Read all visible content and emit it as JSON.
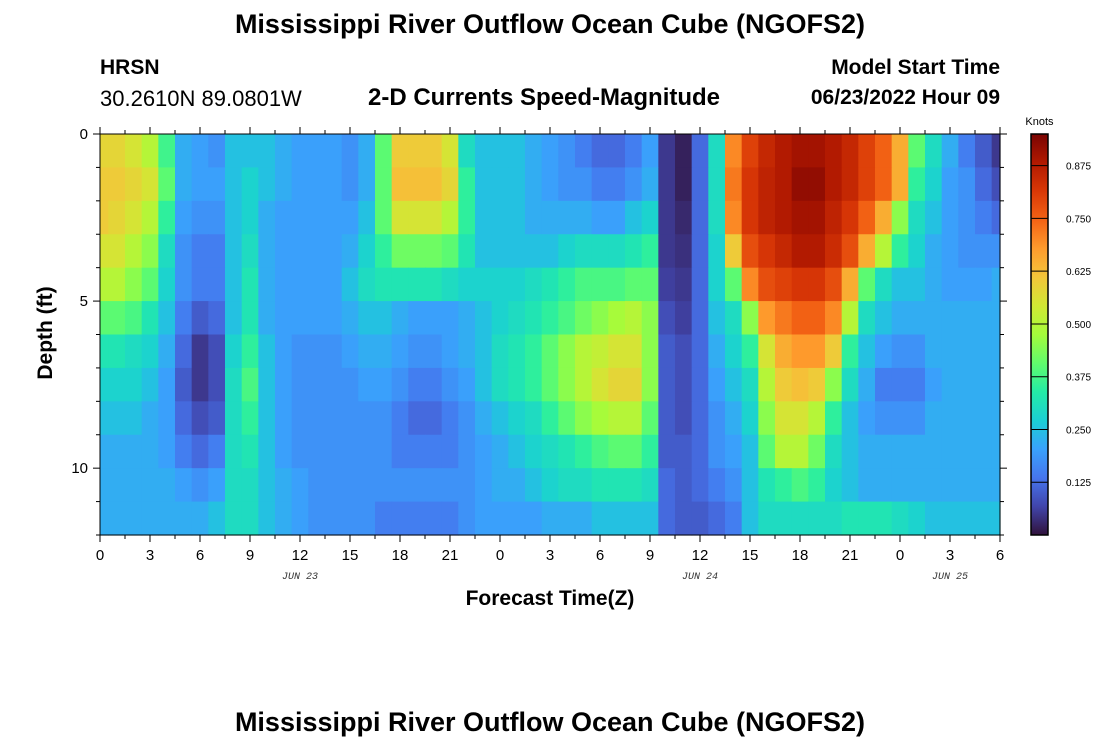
{
  "header": {
    "title": "Mississippi River Outflow Ocean Cube (NGOFS2)",
    "title_repeat": "Mississippi River Outflow Ocean Cube (NGOFS2)",
    "station": "HRSN",
    "coords": "30.2610N  89.0801W",
    "chart_title": "2-D Currents Speed-Magnitude",
    "start_label": "Model Start Time",
    "start_value": "06/23/2022 Hour 09"
  },
  "chart_data": {
    "type": "heatmap",
    "title": "2-D Currents Speed-Magnitude",
    "xlabel": "Forecast Time(Z)",
    "ylabel": "Depth (ft)",
    "x_range_hours": [
      0,
      54
    ],
    "depth_range_ft": [
      0,
      12
    ],
    "x_tick_labels": [
      "0",
      "3",
      "6",
      "9",
      "12",
      "15",
      "18",
      "21",
      "0",
      "3",
      "6",
      "9",
      "12",
      "15",
      "18",
      "21",
      "0",
      "3",
      "6"
    ],
    "y_tick_labels": [
      "0",
      "5",
      "10"
    ],
    "y_tick_values": [
      0,
      5,
      10
    ],
    "date_labels": [
      {
        "hour": 12,
        "text": "JUN 23"
      },
      {
        "hour": 36,
        "text": "JUN 24"
      },
      {
        "hour": 51,
        "text": "JUN 25"
      }
    ],
    "colorbar": {
      "unit": "Knots",
      "min": 0.0,
      "max": 0.95,
      "tick_labels": [
        "0.125",
        "0.250",
        "0.375",
        "0.500",
        "0.625",
        "0.750",
        "0.875"
      ],
      "tick_values": [
        0.125,
        0.25,
        0.375,
        0.5,
        0.625,
        0.75,
        0.875
      ],
      "colors": [
        "#30123b",
        "#4145ab",
        "#4675ed",
        "#39a2fc",
        "#1bcfd4",
        "#24eca6",
        "#61fc6c",
        "#a4fc3b",
        "#d1e834",
        "#f3c63a",
        "#fe9b2d",
        "#f36315",
        "#d93806",
        "#b11901",
        "#7a0402"
      ]
    },
    "depth_levels_ft": [
      0.5,
      1.5,
      2.5,
      3.5,
      4.5,
      5.5,
      6.5,
      7.5,
      8.5,
      9.5,
      10.5,
      11.5
    ],
    "speed_knots": [
      [
        0.58,
        0.58,
        0.55,
        0.5,
        0.37,
        0.22,
        0.2,
        0.18,
        0.25,
        0.25,
        0.25,
        0.22,
        0.2,
        0.2,
        0.2,
        0.18,
        0.22,
        0.4,
        0.6,
        0.6,
        0.6,
        0.55,
        0.3,
        0.25,
        0.25,
        0.25,
        0.22,
        0.2,
        0.18,
        0.15,
        0.12,
        0.12,
        0.15,
        0.2,
        0.05,
        0.02,
        0.12,
        0.3,
        0.7,
        0.8,
        0.85,
        0.88,
        0.9,
        0.9,
        0.88,
        0.85,
        0.8,
        0.75,
        0.65,
        0.4,
        0.3,
        0.22,
        0.15,
        0.1,
        0.05
      ],
      [
        0.6,
        0.6,
        0.58,
        0.55,
        0.4,
        0.22,
        0.2,
        0.2,
        0.25,
        0.28,
        0.25,
        0.22,
        0.2,
        0.2,
        0.2,
        0.18,
        0.22,
        0.4,
        0.62,
        0.62,
        0.62,
        0.58,
        0.35,
        0.25,
        0.25,
        0.25,
        0.22,
        0.2,
        0.18,
        0.18,
        0.15,
        0.15,
        0.18,
        0.22,
        0.05,
        0.02,
        0.12,
        0.3,
        0.72,
        0.82,
        0.86,
        0.88,
        0.92,
        0.92,
        0.88,
        0.85,
        0.8,
        0.75,
        0.65,
        0.35,
        0.28,
        0.2,
        0.18,
        0.12,
        0.08
      ],
      [
        0.6,
        0.58,
        0.55,
        0.5,
        0.35,
        0.2,
        0.18,
        0.18,
        0.25,
        0.28,
        0.22,
        0.2,
        0.2,
        0.2,
        0.2,
        0.2,
        0.25,
        0.4,
        0.55,
        0.55,
        0.55,
        0.5,
        0.35,
        0.25,
        0.25,
        0.25,
        0.22,
        0.22,
        0.22,
        0.22,
        0.2,
        0.2,
        0.25,
        0.28,
        0.05,
        0.03,
        0.12,
        0.3,
        0.7,
        0.82,
        0.86,
        0.88,
        0.9,
        0.9,
        0.86,
        0.82,
        0.75,
        0.65,
        0.45,
        0.3,
        0.25,
        0.2,
        0.18,
        0.15,
        0.12
      ],
      [
        0.55,
        0.55,
        0.5,
        0.45,
        0.3,
        0.18,
        0.15,
        0.15,
        0.25,
        0.3,
        0.22,
        0.2,
        0.2,
        0.2,
        0.2,
        0.22,
        0.28,
        0.35,
        0.42,
        0.42,
        0.42,
        0.4,
        0.32,
        0.25,
        0.25,
        0.25,
        0.25,
        0.25,
        0.28,
        0.3,
        0.3,
        0.3,
        0.32,
        0.35,
        0.05,
        0.04,
        0.12,
        0.28,
        0.6,
        0.78,
        0.82,
        0.85,
        0.88,
        0.88,
        0.84,
        0.78,
        0.65,
        0.5,
        0.35,
        0.28,
        0.22,
        0.2,
        0.18,
        0.18,
        0.18
      ],
      [
        0.5,
        0.5,
        0.45,
        0.4,
        0.28,
        0.18,
        0.15,
        0.15,
        0.25,
        0.32,
        0.22,
        0.2,
        0.2,
        0.2,
        0.2,
        0.25,
        0.3,
        0.32,
        0.32,
        0.32,
        0.32,
        0.3,
        0.28,
        0.28,
        0.28,
        0.28,
        0.3,
        0.32,
        0.35,
        0.38,
        0.38,
        0.38,
        0.4,
        0.4,
        0.06,
        0.05,
        0.12,
        0.28,
        0.4,
        0.7,
        0.78,
        0.8,
        0.82,
        0.82,
        0.78,
        0.65,
        0.4,
        0.3,
        0.25,
        0.25,
        0.22,
        0.2,
        0.2,
        0.2,
        0.22
      ],
      [
        0.4,
        0.4,
        0.38,
        0.32,
        0.25,
        0.15,
        0.1,
        0.12,
        0.25,
        0.32,
        0.22,
        0.2,
        0.2,
        0.2,
        0.2,
        0.22,
        0.25,
        0.25,
        0.22,
        0.2,
        0.2,
        0.2,
        0.22,
        0.25,
        0.28,
        0.3,
        0.32,
        0.35,
        0.38,
        0.42,
        0.45,
        0.48,
        0.5,
        0.45,
        0.08,
        0.06,
        0.12,
        0.25,
        0.3,
        0.45,
        0.68,
        0.72,
        0.75,
        0.75,
        0.7,
        0.5,
        0.3,
        0.25,
        0.22,
        0.22,
        0.22,
        0.22,
        0.22,
        0.22,
        0.22
      ],
      [
        0.32,
        0.32,
        0.3,
        0.28,
        0.22,
        0.12,
        0.05,
        0.08,
        0.28,
        0.35,
        0.25,
        0.2,
        0.18,
        0.18,
        0.18,
        0.2,
        0.22,
        0.22,
        0.2,
        0.18,
        0.18,
        0.2,
        0.22,
        0.25,
        0.3,
        0.32,
        0.35,
        0.4,
        0.45,
        0.5,
        0.52,
        0.55,
        0.55,
        0.45,
        0.1,
        0.08,
        0.12,
        0.22,
        0.28,
        0.35,
        0.55,
        0.65,
        0.68,
        0.68,
        0.6,
        0.35,
        0.25,
        0.2,
        0.18,
        0.18,
        0.22,
        0.22,
        0.22,
        0.22,
        0.22
      ],
      [
        0.28,
        0.28,
        0.28,
        0.25,
        0.2,
        0.1,
        0.05,
        0.08,
        0.3,
        0.38,
        0.25,
        0.2,
        0.18,
        0.18,
        0.18,
        0.18,
        0.2,
        0.2,
        0.18,
        0.15,
        0.15,
        0.18,
        0.2,
        0.25,
        0.3,
        0.32,
        0.35,
        0.4,
        0.45,
        0.5,
        0.55,
        0.58,
        0.58,
        0.45,
        0.1,
        0.08,
        0.12,
        0.2,
        0.25,
        0.3,
        0.5,
        0.6,
        0.62,
        0.6,
        0.45,
        0.3,
        0.22,
        0.15,
        0.15,
        0.15,
        0.2,
        0.22,
        0.22,
        0.22,
        0.22
      ],
      [
        0.25,
        0.25,
        0.25,
        0.22,
        0.2,
        0.12,
        0.08,
        0.1,
        0.3,
        0.35,
        0.25,
        0.2,
        0.18,
        0.18,
        0.18,
        0.18,
        0.18,
        0.18,
        0.15,
        0.12,
        0.12,
        0.15,
        0.18,
        0.22,
        0.25,
        0.28,
        0.3,
        0.35,
        0.4,
        0.45,
        0.48,
        0.5,
        0.5,
        0.4,
        0.1,
        0.08,
        0.12,
        0.18,
        0.22,
        0.28,
        0.45,
        0.55,
        0.55,
        0.5,
        0.35,
        0.25,
        0.2,
        0.18,
        0.18,
        0.18,
        0.22,
        0.22,
        0.22,
        0.22,
        0.22
      ],
      [
        0.22,
        0.22,
        0.22,
        0.22,
        0.2,
        0.15,
        0.12,
        0.15,
        0.3,
        0.32,
        0.25,
        0.2,
        0.18,
        0.18,
        0.18,
        0.18,
        0.18,
        0.18,
        0.15,
        0.15,
        0.15,
        0.15,
        0.18,
        0.2,
        0.22,
        0.25,
        0.28,
        0.3,
        0.32,
        0.35,
        0.38,
        0.4,
        0.4,
        0.35,
        0.1,
        0.1,
        0.12,
        0.18,
        0.2,
        0.25,
        0.4,
        0.5,
        0.5,
        0.42,
        0.3,
        0.25,
        0.22,
        0.22,
        0.22,
        0.22,
        0.22,
        0.22,
        0.22,
        0.22,
        0.22
      ],
      [
        0.22,
        0.22,
        0.22,
        0.22,
        0.22,
        0.2,
        0.18,
        0.2,
        0.3,
        0.3,
        0.25,
        0.22,
        0.2,
        0.18,
        0.18,
        0.18,
        0.18,
        0.18,
        0.18,
        0.18,
        0.18,
        0.18,
        0.18,
        0.2,
        0.22,
        0.22,
        0.25,
        0.28,
        0.3,
        0.3,
        0.32,
        0.32,
        0.32,
        0.3,
        0.12,
        0.1,
        0.12,
        0.15,
        0.18,
        0.25,
        0.32,
        0.35,
        0.38,
        0.35,
        0.28,
        0.25,
        0.22,
        0.22,
        0.22,
        0.22,
        0.22,
        0.22,
        0.22,
        0.22,
        0.22
      ],
      [
        0.22,
        0.22,
        0.22,
        0.22,
        0.22,
        0.22,
        0.22,
        0.25,
        0.3,
        0.3,
        0.25,
        0.22,
        0.2,
        0.18,
        0.18,
        0.18,
        0.18,
        0.15,
        0.15,
        0.15,
        0.15,
        0.15,
        0.18,
        0.2,
        0.2,
        0.2,
        0.2,
        0.22,
        0.22,
        0.22,
        0.25,
        0.25,
        0.25,
        0.25,
        0.12,
        0.1,
        0.1,
        0.12,
        0.15,
        0.25,
        0.3,
        0.3,
        0.3,
        0.3,
        0.3,
        0.32,
        0.32,
        0.32,
        0.3,
        0.28,
        0.25,
        0.25,
        0.25,
        0.25,
        0.25
      ]
    ]
  }
}
